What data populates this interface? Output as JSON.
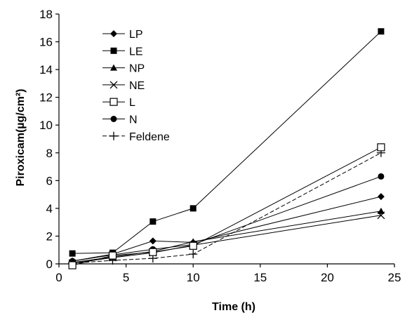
{
  "chart_data": {
    "type": "line",
    "xlabel": "Time (h)",
    "ylabel": "Piroxicam(µg/cm²)",
    "xlim": [
      0,
      25
    ],
    "ylim": [
      0,
      18
    ],
    "xticks": [
      0,
      5,
      10,
      15,
      20,
      25
    ],
    "yticks": [
      0,
      2,
      4,
      6,
      8,
      10,
      12,
      14,
      16,
      18
    ],
    "grid": false,
    "legend_position": "top-left",
    "x": [
      1,
      4,
      7,
      10,
      24
    ],
    "series": [
      {
        "name": "LP",
        "marker": "diamond",
        "values": [
          0.2,
          0.7,
          1.65,
          1.55,
          4.85
        ]
      },
      {
        "name": "LE",
        "marker": "square",
        "values": [
          0.75,
          0.8,
          3.05,
          4.0,
          16.75
        ]
      },
      {
        "name": "NP",
        "marker": "triangle",
        "values": [
          0.1,
          0.5,
          0.9,
          1.6,
          3.8
        ]
      },
      {
        "name": "NE",
        "marker": "x",
        "values": [
          0.05,
          0.45,
          0.8,
          1.35,
          3.5
        ]
      },
      {
        "name": "L",
        "marker": "open-square",
        "values": [
          -0.1,
          0.6,
          0.85,
          1.3,
          8.4
        ]
      },
      {
        "name": "N",
        "marker": "circle",
        "values": [
          0.2,
          0.65,
          1.05,
          1.4,
          6.3
        ]
      },
      {
        "name": "Feldene",
        "marker": "plus",
        "dashed": true,
        "values": [
          0.05,
          0.25,
          0.4,
          0.7,
          8.0
        ]
      }
    ]
  }
}
